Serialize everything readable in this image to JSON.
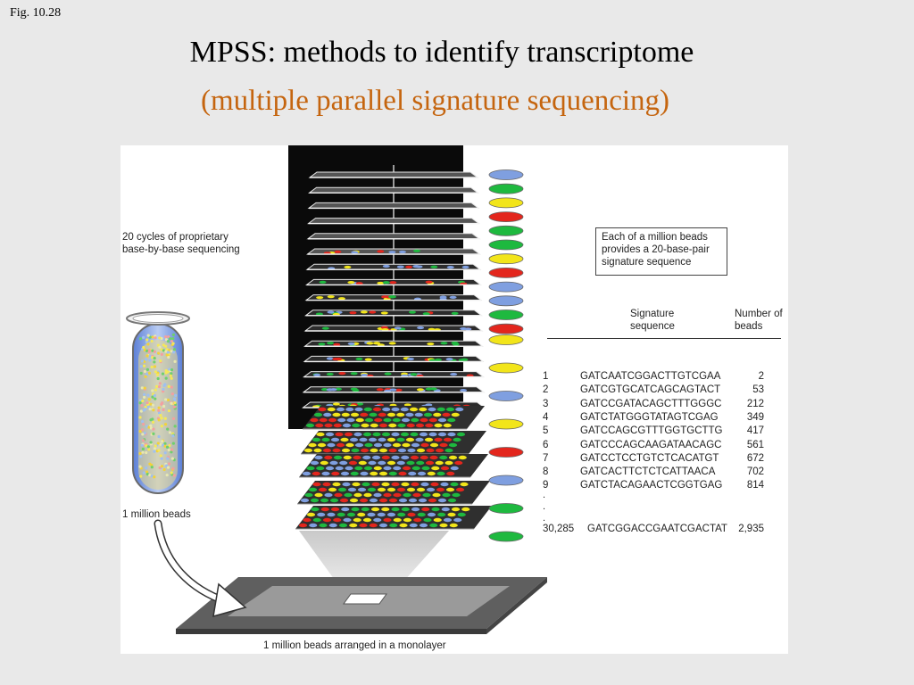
{
  "header": {
    "fig_label": "Fig. 10.28",
    "title": "MPSS: methods to identify transcriptome",
    "subtitle": "(multiple parallel signature sequencing)"
  },
  "diagram": {
    "cycles_label_line1": "20 cycles of proprietary",
    "cycles_label_line2": "base-by-base sequencing",
    "beads_label": "1 million beads",
    "monolayer_label": "1 million beads arranged in a monolayer",
    "callout_line1": "Each of a million beads",
    "callout_line2": "provides a 20-base-pair",
    "callout_line3": "signature sequence",
    "sequence_header_line1": "Signature",
    "sequence_header_line2": "sequence",
    "count_header_line1": "Number of",
    "count_header_line2": "beads",
    "rows": [
      {
        "index": "1",
        "sequence": "GATCAATCGGACTTGTCGAA",
        "count": "2"
      },
      {
        "index": "2",
        "sequence": "GATCGTGCATCAGCAGTACT",
        "count": "53"
      },
      {
        "index": "3",
        "sequence": "GATCCGATACAGCTTTGGGC",
        "count": "212"
      },
      {
        "index": "4",
        "sequence": "GATCTATGGGTATAGTCGAG",
        "count": "349"
      },
      {
        "index": "5",
        "sequence": "GATCCAGCGTTTGGTGCTTG",
        "count": "417"
      },
      {
        "index": "6",
        "sequence": "GATCCCAGCAAGATAACAGC",
        "count": "561"
      },
      {
        "index": "7",
        "sequence": "GATCCTCCTGTCTCACATGT",
        "count": "672"
      },
      {
        "index": "8",
        "sequence": "GATCACTTCTCTCATTAACA",
        "count": "702"
      },
      {
        "index": "9",
        "sequence": "GATCTACAGAACTCGGTGAG",
        "count": "814"
      }
    ],
    "last_row": {
      "index": "30,285",
      "sequence": "GATCGGACCGAATCGACTAT",
      "count": "2,935"
    },
    "ellipsis": ".",
    "base_colors": {
      "blue": "#7f9fe0",
      "green": "#1eb93f",
      "yellow": "#f2e51a",
      "red": "#e3261d"
    },
    "signal_sequence": [
      "blue",
      "green",
      "yellow",
      "red",
      "green",
      "green",
      "yellow",
      "red",
      "blue",
      "blue",
      "green",
      "red",
      "yellow",
      "yellow",
      "blue",
      "yellow",
      "red",
      "blue",
      "green",
      "green"
    ]
  }
}
